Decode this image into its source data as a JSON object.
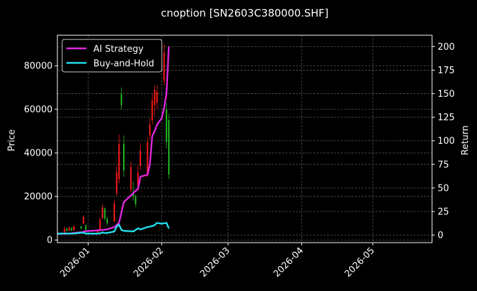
{
  "chart_data": {
    "type": "candlestick+line",
    "title": "cnoption [SN2603C380000.SHF]",
    "xlabel": "",
    "ylabel": "Price",
    "ylabel_right": "Return",
    "xlim": [
      "2025-12-19",
      "2026-05-26"
    ],
    "ylim": [
      -1200,
      94000
    ],
    "ylim_right": [
      -8,
      212
    ],
    "x_ticks": [
      "2026-01-01",
      "2026-02-01",
      "2026-03-01",
      "2026-04-01",
      "2026-05-01"
    ],
    "x_tick_labels": [
      "2026-01",
      "2026-02",
      "2026-03",
      "2026-04",
      "2026-05"
    ],
    "y_ticks": [
      0,
      20000,
      40000,
      60000,
      80000
    ],
    "y_tick_labels": [
      "0",
      "20000",
      "40000",
      "60000",
      "80000"
    ],
    "y_ticks_right": [
      0,
      25,
      50,
      75,
      100,
      125,
      150,
      175,
      200
    ],
    "y_tick_labels_right": [
      "0",
      "25",
      "50",
      "75",
      "100",
      "125",
      "150",
      "175",
      "200"
    ],
    "grid": true,
    "legend_position": "top-left",
    "candles": [
      {
        "date": "2025-12-22",
        "open": 3400,
        "high": 6200,
        "low": 3100,
        "close": 5200
      },
      {
        "date": "2025-12-23",
        "open": 5200,
        "high": 5800,
        "low": 3900,
        "close": 4300
      },
      {
        "date": "2025-12-24",
        "open": 4300,
        "high": 6400,
        "low": 4000,
        "close": 5600
      },
      {
        "date": "2025-12-25",
        "open": 5600,
        "high": 5900,
        "low": 4100,
        "close": 4400
      },
      {
        "date": "2025-12-26",
        "open": 4400,
        "high": 6800,
        "low": 4200,
        "close": 6200
      },
      {
        "date": "2025-12-29",
        "open": 6200,
        "high": 6500,
        "low": 4900,
        "close": 5300
      },
      {
        "date": "2025-12-30",
        "open": 7500,
        "high": 11300,
        "low": 7300,
        "close": 10600
      },
      {
        "date": "2025-12-31",
        "open": 6800,
        "high": 7200,
        "low": 4000,
        "close": 4500
      },
      {
        "date": "2026-01-05",
        "open": 3400,
        "high": 4600,
        "low": 3200,
        "close": 4100
      },
      {
        "date": "2026-01-06",
        "open": 4100,
        "high": 10300,
        "low": 3900,
        "close": 9400
      },
      {
        "date": "2026-01-07",
        "open": 10000,
        "high": 16500,
        "low": 9600,
        "close": 15000
      },
      {
        "date": "2026-01-08",
        "open": 14500,
        "high": 14900,
        "low": 8900,
        "close": 9800
      },
      {
        "date": "2026-01-09",
        "open": 9800,
        "high": 10700,
        "low": 6700,
        "close": 7700
      },
      {
        "date": "2026-01-12",
        "open": 8500,
        "high": 18400,
        "low": 8200,
        "close": 16800
      },
      {
        "date": "2026-01-13",
        "open": 21500,
        "high": 34000,
        "low": 20000,
        "close": 31000
      },
      {
        "date": "2026-01-14",
        "open": 28000,
        "high": 48500,
        "low": 26000,
        "close": 44000
      },
      {
        "date": "2026-01-15",
        "open": 67000,
        "high": 70000,
        "low": 60000,
        "close": 62000
      },
      {
        "date": "2026-01-16",
        "open": 44000,
        "high": 48000,
        "low": 29000,
        "close": 32000
      },
      {
        "date": "2026-01-19",
        "open": 23000,
        "high": 36000,
        "low": 22000,
        "close": 33500
      },
      {
        "date": "2026-01-20",
        "open": 22000,
        "high": 27000,
        "low": 18000,
        "close": 20000
      },
      {
        "date": "2026-01-21",
        "open": 20000,
        "high": 21000,
        "low": 15000,
        "close": 16500
      },
      {
        "date": "2026-01-22",
        "open": 25000,
        "high": 34000,
        "low": 23000,
        "close": 31000
      },
      {
        "date": "2026-01-23",
        "open": 34000,
        "high": 44500,
        "low": 32000,
        "close": 41000
      },
      {
        "date": "2026-01-26",
        "open": 30000,
        "high": 47000,
        "low": 29000,
        "close": 45000
      },
      {
        "date": "2026-01-27",
        "open": 48000,
        "high": 56000,
        "low": 46000,
        "close": 53000
      },
      {
        "date": "2026-01-28",
        "open": 55000,
        "high": 67000,
        "low": 53000,
        "close": 64000
      },
      {
        "date": "2026-01-29",
        "open": 62000,
        "high": 71000,
        "low": 57000,
        "close": 69000
      },
      {
        "date": "2026-01-30",
        "open": 63000,
        "high": 71000,
        "low": 60000,
        "close": 68000
      },
      {
        "date": "2026-02-02",
        "open": 73000,
        "high": 90000,
        "low": 71000,
        "close": 86000
      },
      {
        "date": "2026-02-03",
        "open": 60000,
        "high": 63000,
        "low": 42000,
        "close": 45000
      },
      {
        "date": "2026-02-04",
        "open": 55000,
        "high": 58000,
        "low": 28000,
        "close": 30000
      }
    ],
    "series": [
      {
        "name": "AI Strategy",
        "color": "#e028e0",
        "axis": "right",
        "x": [
          "2025-12-19",
          "2025-12-22",
          "2025-12-24",
          "2025-12-26",
          "2025-12-29",
          "2025-12-31",
          "2026-01-02",
          "2026-01-05",
          "2026-01-07",
          "2026-01-09",
          "2026-01-12",
          "2026-01-14",
          "2026-01-15",
          "2026-01-16",
          "2026-01-19",
          "2026-01-21",
          "2026-01-22",
          "2026-01-23",
          "2026-01-26",
          "2026-01-27",
          "2026-01-28",
          "2026-01-29",
          "2026-01-30",
          "2026-02-01",
          "2026-02-02",
          "2026-02-03",
          "2026-02-04"
        ],
        "values": [
          1.5,
          1.5,
          1.6,
          2.2,
          3.0,
          4.0,
          4.5,
          5.0,
          5.5,
          6.0,
          8.5,
          13.0,
          24.0,
          35.0,
          42.0,
          47.0,
          49.0,
          62.0,
          64.0,
          75.0,
          105.0,
          110.0,
          117.0,
          124.0,
          135.0,
          150.0,
          200.0
        ]
      },
      {
        "name": "Buy-and-Hold",
        "color": "#22e0f0",
        "axis": "right",
        "x": [
          "2025-12-19",
          "2025-12-22",
          "2025-12-24",
          "2025-12-26",
          "2025-12-29",
          "2025-12-30",
          "2025-12-31",
          "2026-01-02",
          "2026-01-05",
          "2026-01-06",
          "2026-01-07",
          "2026-01-08",
          "2026-01-09",
          "2026-01-12",
          "2026-01-13",
          "2026-01-14",
          "2026-01-15",
          "2026-01-16",
          "2026-01-19",
          "2026-01-20",
          "2026-01-21",
          "2026-01-22",
          "2026-01-23",
          "2026-01-26",
          "2026-01-27",
          "2026-01-28",
          "2026-01-29",
          "2026-01-30",
          "2026-02-01",
          "2026-02-02",
          "2026-02-03",
          "2026-02-04"
        ],
        "values": [
          1.5,
          1.6,
          1.6,
          1.7,
          2.5,
          2.5,
          1.5,
          1.5,
          1.5,
          1.8,
          2.8,
          2.2,
          2.2,
          3.8,
          9.0,
          11.0,
          5.5,
          4.5,
          4.0,
          3.8,
          5.5,
          7.0,
          6.0,
          8.5,
          9.0,
          9.5,
          10.5,
          13.0,
          12.0,
          12.5,
          13.0,
          7.0
        ]
      }
    ],
    "candle_colors": {
      "up": "#ff1a1a",
      "down": "#22bb22"
    },
    "axes_color": "#ffffff",
    "grid_color": "#555555",
    "background": "#000000"
  }
}
